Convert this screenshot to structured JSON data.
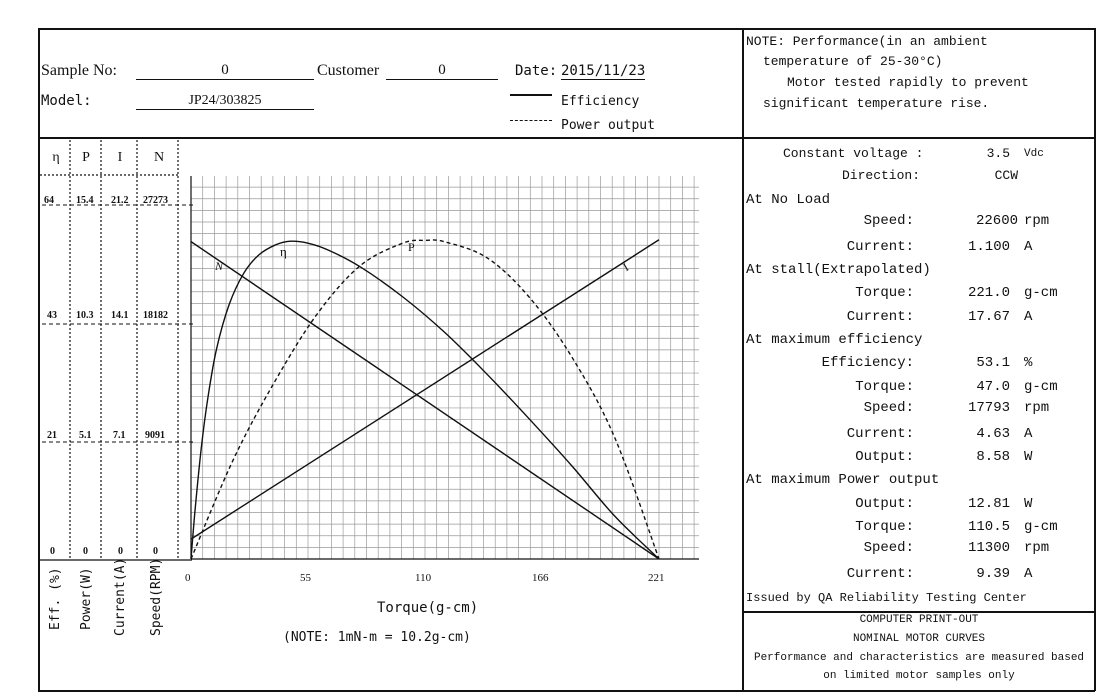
{
  "header": {
    "sample_label": "Sample No:",
    "sample_value": "0",
    "customer_label": "Customer",
    "customer_value": "0",
    "date_label": "Date:",
    "date_value": "2015/11/23",
    "model_label": "Model:",
    "model_value": "JP24/303825",
    "legend_efficiency": "Efficiency",
    "legend_power": "Power output"
  },
  "note": {
    "line1": "NOTE:  Performance(in an ambient",
    "line2": "temperature of 25-30°C)",
    "line3": "Motor tested rapidly to prevent",
    "line4": "significant temperature rise."
  },
  "columns": {
    "headers": [
      "η",
      "P",
      "I",
      "N"
    ],
    "labels": [
      "Eff. (%)",
      "Power(W)",
      "Current(A)",
      "Speed(RPM)"
    ],
    "rows": [
      [
        "64",
        "15.4",
        "21.2",
        "27273"
      ],
      [
        "43",
        "10.3",
        "14.1",
        "18182"
      ],
      [
        "21",
        "5.1",
        "7.1",
        "9091"
      ],
      [
        "0",
        "0",
        "0",
        "0"
      ]
    ]
  },
  "chart_data": {
    "type": "line",
    "xlabel": "Torque(g-cm)",
    "note": "(NOTE: 1mN-m = 10.2g-cm)",
    "x_ticks": [
      "0",
      "55",
      "110",
      "166",
      "221"
    ],
    "xlim": [
      0,
      221
    ],
    "series": [
      {
        "name": "N",
        "unit": "rpm",
        "ylim": [
          0,
          27273
        ],
        "x": [
          0,
          221
        ],
        "y": [
          22600,
          0
        ]
      },
      {
        "name": "I",
        "unit": "A",
        "ylim": [
          0,
          21.2
        ],
        "x": [
          0,
          221
        ],
        "y": [
          1.1,
          17.67
        ]
      },
      {
        "name": "η",
        "unit": "%",
        "ylim": [
          0,
          64
        ],
        "x": [
          0,
          2,
          5,
          8,
          12,
          18,
          25,
          32,
          40,
          47,
          55,
          65,
          80,
          100,
          120,
          140,
          160,
          180,
          200,
          221
        ],
        "y": [
          0,
          8.5,
          19,
          27,
          35,
          42.5,
          47.8,
          50.8,
          52.5,
          53.1,
          52.8,
          51.6,
          48.8,
          43.8,
          37.8,
          30.8,
          23.3,
          15.5,
          7.2,
          0
        ]
      },
      {
        "name": "P",
        "unit": "W",
        "ylim": [
          0,
          15.4
        ],
        "x": [
          0,
          20,
          40,
          60,
          80,
          100,
          110.5,
          120,
          140,
          160,
          180,
          200,
          221
        ],
        "y": [
          0,
          4.0,
          7.2,
          9.9,
          11.8,
          12.7,
          12.81,
          12.75,
          12.1,
          10.5,
          8.1,
          4.9,
          0
        ]
      }
    ]
  },
  "specs": {
    "constant_voltage_label": "Constant voltage :",
    "constant_voltage_value": "3.5",
    "constant_voltage_unit": "Vdc",
    "direction_label": "Direction:",
    "direction_value": "CCW",
    "no_load_title": "At No Load",
    "no_load_speed_label": "Speed:",
    "no_load_speed_value": "22600",
    "no_load_speed_unit": "rpm",
    "no_load_current_label": "Current:",
    "no_load_current_value": "1.100",
    "no_load_current_unit": "A",
    "stall_title": "At stall(Extrapolated)",
    "stall_torque_label": "Torque:",
    "stall_torque_value": "221.0",
    "stall_torque_unit": "g-cm",
    "stall_current_label": "Current:",
    "stall_current_value": "17.67",
    "stall_current_unit": "A",
    "max_eff_title": "At maximum efficiency",
    "max_eff_eff_label": "Efficiency:",
    "max_eff_eff_value": "53.1",
    "max_eff_eff_unit": "%",
    "max_eff_torque_label": "Torque:",
    "max_eff_torque_value": "47.0",
    "max_eff_torque_unit": "g-cm",
    "max_eff_speed_label": "Speed:",
    "max_eff_speed_value": "17793",
    "max_eff_speed_unit": "rpm",
    "max_eff_current_label": "Current:",
    "max_eff_current_value": "4.63",
    "max_eff_current_unit": "A",
    "max_eff_output_label": "Output:",
    "max_eff_output_value": "8.58",
    "max_eff_output_unit": "W",
    "max_pow_title": "At maximum Power output",
    "max_pow_output_label": "Output:",
    "max_pow_output_value": "12.81",
    "max_pow_output_unit": "W",
    "max_pow_torque_label": "Torque:",
    "max_pow_torque_value": "110.5",
    "max_pow_torque_unit": "g-cm",
    "max_pow_speed_label": "Speed:",
    "max_pow_speed_value": "11300",
    "max_pow_speed_unit": "rpm",
    "max_pow_current_label": "Current:",
    "max_pow_current_value": "9.39",
    "max_pow_current_unit": "A",
    "issued": "Issued by QA Reliability Testing Center"
  },
  "footer": {
    "line1": "COMPUTER PRINT-OUT",
    "line2": "NOMINAL MOTOR CURVES",
    "line3": "Performance and characteristics are measured based",
    "line4": "on limited motor samples only"
  }
}
